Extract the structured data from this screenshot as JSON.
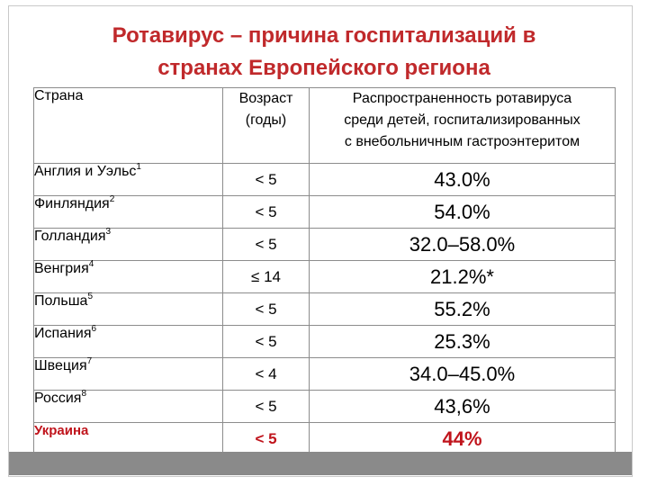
{
  "title": {
    "line1": "Ротавирус – причина госпитализаций в",
    "line2": "странах Европейского региона"
  },
  "table": {
    "headers": {
      "country": "Страна",
      "age_line1": "Возраст",
      "age_line2": "(годы)",
      "prev_line1": "Распространенность ротавируса",
      "prev_line2": "среди детей, госпитализированных",
      "prev_line3": "с внебольничным гастроэнтеритом"
    },
    "rows": [
      {
        "country": "Англия и Уэльс",
        "ref": "1",
        "age": "< 5",
        "prevalence": "43.0%"
      },
      {
        "country": "Финляндия",
        "ref": "2",
        "age": "< 5",
        "prevalence": "54.0%"
      },
      {
        "country": "Голландия",
        "ref": "3",
        "age": "< 5",
        "prevalence": "32.0–58.0%"
      },
      {
        "country": "Венгрия",
        "ref": "4",
        "age": "≤ 14",
        "prevalence": "21.2%*"
      },
      {
        "country": "Польша",
        "ref": "5",
        "age": "< 5",
        "prevalence": "55.2%"
      },
      {
        "country": "Испания",
        "ref": "6",
        "age": "< 5",
        "prevalence": "25.3%"
      },
      {
        "country": "Швеция",
        "ref": "7",
        "age": "< 4",
        "prevalence": "34.0–45.0%"
      },
      {
        "country": "Россия",
        "ref": "8",
        "age": "< 5",
        "prevalence": "43,6%"
      },
      {
        "country": "Украина",
        "ref": "",
        "age": "< 5",
        "prevalence": "44%"
      }
    ]
  },
  "colors": {
    "title": "#c0292b",
    "highlight": "#c0141c",
    "footer_bar": "#8a8a8a"
  }
}
